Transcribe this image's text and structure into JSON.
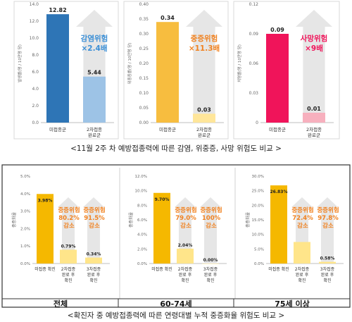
{
  "top_caption": "<11월 2주 차 예방접종력에 따른 감염, 위중증, 사망 위험도 비교 >",
  "bottom_caption": "<확진자 중 예방접종력에 따른 연령대별 누적 중증화율 위험도 비교 >",
  "colors": {
    "top_bar_unvax_1": "#2E75B6",
    "top_bar_vax_1": "#9DC3E6",
    "top_bar_unvax_2": "#F7BD3F",
    "top_bar_vax_2": "#FFE69A",
    "top_bar_unvax_3": "#F0145A",
    "top_bar_vax_3": "#F7B0BE",
    "top_ratio_1": "#3B8FD6",
    "top_ratio_2": "#F08221",
    "top_ratio_3": "#F0145A",
    "bottom_bar_unvax": "#F5B800",
    "bottom_bar_vax": "#FFE58A",
    "bottom_reduction_text": "#F08221",
    "arrow_fill": "#E6E6E6"
  },
  "chart_data": [
    {
      "type": "bar",
      "ylabel": "발생률(명 / 10만명 당)",
      "ylim": [
        0,
        14
      ],
      "yticks": [
        "0.0",
        "2.0",
        "4.0",
        "6.0",
        "8.0",
        "10.0",
        "12.0",
        "14.0"
      ],
      "categories": [
        "미접종군",
        "2차접종\n완료군"
      ],
      "values": [
        12.82,
        5.44
      ],
      "value_labels": [
        "12.82",
        "5.44"
      ],
      "annotation": [
        "감염위험",
        "×2.4배"
      ]
    },
    {
      "type": "bar",
      "ylabel": "위중증률(명 / 10만명 당)",
      "ylim": [
        0,
        0.4
      ],
      "yticks": [
        "0.00",
        "0.05",
        "0.10",
        "0.15",
        "0.20",
        "0.25",
        "0.30",
        "0.35",
        "0.40"
      ],
      "categories": [
        "미접종군",
        "2차접종\n완료군"
      ],
      "values": [
        0.34,
        0.03
      ],
      "value_labels": [
        "0.34",
        "0.03"
      ],
      "annotation": [
        "중증위험",
        "×11.3배"
      ]
    },
    {
      "type": "bar",
      "ylabel": "치명률(명 / 10만명 당)",
      "ylim": [
        0,
        0.12
      ],
      "yticks": [
        "0",
        "0.03",
        "0.06",
        "0.09",
        "0.12"
      ],
      "categories": [
        "미접종군",
        "2차접종\n완료군"
      ],
      "values": [
        0.09,
        0.01
      ],
      "value_labels": [
        "0.09",
        "0.01"
      ],
      "annotation": [
        "사망위험",
        "×9배"
      ]
    },
    {
      "type": "bar",
      "panel_label": "전체",
      "ylabel": "중증화율",
      "ylim": [
        0,
        5
      ],
      "yticks": [
        "0.0%",
        "1.0%",
        "2.0%",
        "3.0%",
        "4.0%",
        "5.0%"
      ],
      "categories": [
        "미접종 확진",
        "2차접종\n완료 후\n확진",
        "3차접종\n완료 후\n확진"
      ],
      "values": [
        3.98,
        0.79,
        0.34
      ],
      "value_labels": [
        "3.98%",
        "0.79%",
        "0.34%"
      ],
      "reductions": [
        [
          "중증위험",
          "80.2%",
          "감소"
        ],
        [
          "중증위험",
          "91.5%",
          "감소"
        ]
      ]
    },
    {
      "type": "bar",
      "panel_label": "60-74세",
      "ylabel": "중증화율",
      "ylim": [
        0,
        12
      ],
      "yticks": [
        "0.0%",
        "2.0%",
        "4.0%",
        "6.0%",
        "8.0%",
        "10.0%",
        "12.0%"
      ],
      "categories": [
        "미접종 확진",
        "2차접종\n완료 후\n확진",
        "3차접종\n완료 후\n확진"
      ],
      "values": [
        9.7,
        2.04,
        0.0
      ],
      "value_labels": [
        "9.70%",
        "2.04%",
        "0.00%"
      ],
      "reductions": [
        [
          "중증위험",
          "79.0%",
          "감소"
        ],
        [
          "중증위험",
          "100%",
          "감소"
        ]
      ]
    },
    {
      "type": "bar",
      "panel_label": "75세 이상",
      "ylabel": "중증화율",
      "ylim": [
        0,
        30
      ],
      "yticks": [
        "0.0%",
        "5.0%",
        "10.0%",
        "15.0%",
        "20.0%",
        "25.0%",
        "30.0%"
      ],
      "categories": [
        "미접종 확진",
        "2차접종\n완료 후\n확진",
        "3차접종\n완료 후\n확진"
      ],
      "values": [
        26.83,
        7.4,
        0.58
      ],
      "value_labels": [
        "26.83%",
        "",
        "0.58%"
      ],
      "reductions": [
        [
          "중증위험",
          "72.4%",
          "감소"
        ],
        [
          "중증위험",
          "97.8%",
          "감소"
        ]
      ]
    }
  ]
}
